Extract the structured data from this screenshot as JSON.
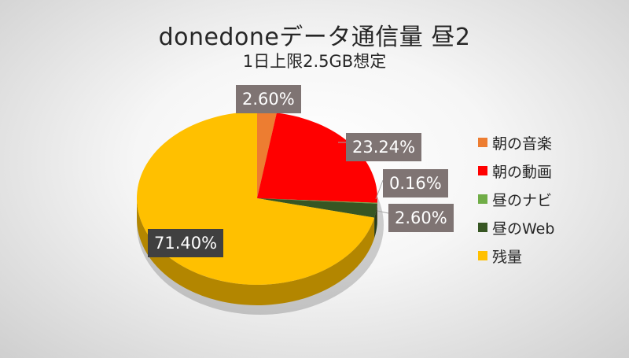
{
  "chart_data": {
    "type": "pie",
    "title": "donedoneデータ通信量 昼2",
    "subtitle": "1日上限2.5GB想定",
    "legend_position": "right",
    "slices": [
      {
        "name": "朝の音楽",
        "value": 2.6,
        "label": "2.60%",
        "color": "#ed7d31"
      },
      {
        "name": "朝の動画",
        "value": 23.24,
        "label": "23.24%",
        "color": "#ff0000"
      },
      {
        "name": "昼のナビ",
        "value": 0.16,
        "label": "0.16%",
        "color": "#70ad47"
      },
      {
        "name": "昼のWeb",
        "value": 2.6,
        "label": "2.60%",
        "color": "#375623"
      },
      {
        "name": "残量",
        "value": 71.4,
        "label": "71.40%",
        "color": "#ffc000"
      }
    ]
  }
}
